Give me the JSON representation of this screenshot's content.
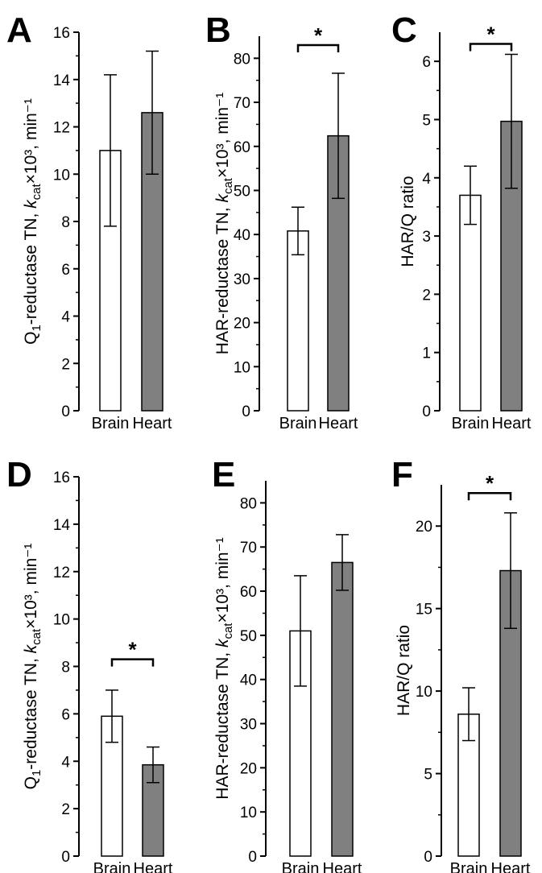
{
  "colors": {
    "brain": "#ffffff",
    "heart": "#808080",
    "stroke": "#000000"
  },
  "chart_data": [
    {
      "panel": "A",
      "type": "bar",
      "categories": [
        "Brain",
        "Heart"
      ],
      "values": [
        11.0,
        12.6
      ],
      "errors": [
        3.2,
        2.6
      ],
      "ylabel": "Q1-reductase TN, kcat×10³, min⁻¹",
      "ylim": [
        0,
        16
      ],
      "yticks": [
        0,
        2,
        4,
        6,
        8,
        10,
        12,
        14,
        16
      ],
      "significance": null
    },
    {
      "panel": "B",
      "type": "bar",
      "categories": [
        "Brain",
        "Heart"
      ],
      "values": [
        40.8,
        62.4
      ],
      "errors": [
        5.4,
        14.2
      ],
      "ylabel": "HAR-reductase TN, kcat×10³, min⁻¹",
      "ylim": [
        0,
        85
      ],
      "yticks": [
        0,
        10,
        20,
        30,
        40,
        50,
        60,
        70,
        80
      ],
      "significance": {
        "marker": "*",
        "y": 83
      }
    },
    {
      "panel": "C",
      "type": "bar",
      "categories": [
        "Brain",
        "Heart"
      ],
      "values": [
        3.7,
        4.97
      ],
      "errors": [
        0.5,
        1.15
      ],
      "ylabel": "HAR/Q ratio",
      "ylim": [
        0,
        6.5
      ],
      "yticks": [
        0,
        1,
        2,
        3,
        4,
        5,
        6
      ],
      "significance": {
        "marker": "*",
        "y": 6.3
      }
    },
    {
      "panel": "D",
      "type": "bar",
      "categories": [
        "Brain",
        "Heart"
      ],
      "values": [
        5.9,
        3.85
      ],
      "errors": [
        1.1,
        0.75
      ],
      "ylabel": "Q1-reductase TN, kcat×10³, min⁻¹",
      "ylim": [
        0,
        16
      ],
      "yticks": [
        0,
        2,
        4,
        6,
        8,
        10,
        12,
        14,
        16
      ],
      "significance": {
        "marker": "*",
        "y": 8.3
      }
    },
    {
      "panel": "E",
      "type": "bar",
      "categories": [
        "Brain",
        "Heart"
      ],
      "values": [
        51.0,
        66.5
      ],
      "errors": [
        12.5,
        6.3
      ],
      "ylabel": "HAR-reductase TN, kcat×10³, min⁻¹",
      "ylim": [
        0,
        85
      ],
      "yticks": [
        0,
        10,
        20,
        30,
        40,
        50,
        60,
        70,
        80
      ],
      "significance": null
    },
    {
      "panel": "F",
      "type": "bar",
      "categories": [
        "Brain",
        "Heart"
      ],
      "values": [
        8.6,
        17.3
      ],
      "errors": [
        1.6,
        3.5
      ],
      "ylabel": "HAR/Q ratio",
      "ylim": [
        0,
        22.5
      ],
      "yticks": [
        0,
        5,
        10,
        15,
        20
      ],
      "significance": {
        "marker": "*",
        "y": 22
      }
    }
  ]
}
